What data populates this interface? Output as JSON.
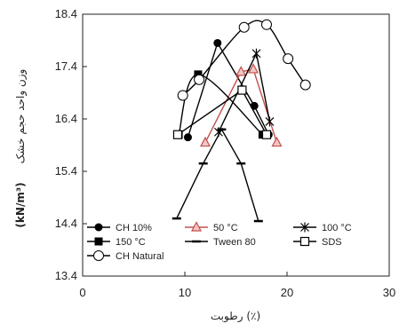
{
  "chart_data": {
    "type": "line",
    "xlabel": "رطوبت (٪)",
    "ylabel_fa": "وزن واحد حجم خشک",
    "ylabel_unit": "(kN/m³)",
    "xlim": [
      0,
      30
    ],
    "ylim": [
      13.4,
      18.4
    ],
    "x_ticks": [
      "0",
      "10",
      "20",
      "30"
    ],
    "y_ticks": [
      "13.4",
      "14.4",
      "15.4",
      "16.4",
      "17.4",
      "18.4"
    ],
    "grid": false,
    "legend_placement": "bottom-left, inside plot area",
    "series": [
      {
        "name": "CH 10%",
        "marker": "circle-filled",
        "color": "#000000",
        "points": [
          [
            10.3,
            16.05
          ],
          [
            13.2,
            17.85
          ],
          [
            16.8,
            16.65
          ],
          [
            18.2,
            16.1
          ]
        ]
      },
      {
        "name": "50 °C",
        "marker": "triangle-open",
        "color": "#c0504d",
        "points": [
          [
            12,
            15.95
          ],
          [
            15.5,
            17.3
          ],
          [
            16.7,
            17.35
          ],
          [
            19,
            15.95
          ]
        ]
      },
      {
        "name": "100 °C",
        "marker": "asterisk",
        "color": "#000000",
        "points": [
          [
            13.3,
            16.15
          ],
          [
            17,
            17.65
          ],
          [
            18.3,
            16.35
          ]
        ]
      },
      {
        "name": "150 °C",
        "marker": "square-filled",
        "color": "#000000",
        "points": [
          [
            9.4,
            16.1
          ],
          [
            11.3,
            17.25
          ],
          [
            17.6,
            16.1
          ]
        ]
      },
      {
        "name": "Tween 80",
        "marker": "dash",
        "color": "#000000",
        "points": [
          [
            9.2,
            14.5
          ],
          [
            11.8,
            15.55
          ],
          [
            13.6,
            16.2
          ],
          [
            15.5,
            15.55
          ],
          [
            17.2,
            14.45
          ]
        ]
      },
      {
        "name": "SDS",
        "marker": "square-open",
        "color": "#000000",
        "points": [
          [
            9.3,
            16.1
          ],
          [
            15.6,
            16.95
          ],
          [
            18,
            16.1
          ]
        ]
      },
      {
        "name": "CH Natural",
        "marker": "circle-open",
        "color": "#000000",
        "points": [
          [
            9.8,
            16.85
          ],
          [
            11.4,
            17.15
          ],
          [
            15.8,
            18.15
          ],
          [
            18,
            18.2
          ],
          [
            20.1,
            17.55
          ],
          [
            21.8,
            17.05
          ]
        ]
      }
    ]
  }
}
